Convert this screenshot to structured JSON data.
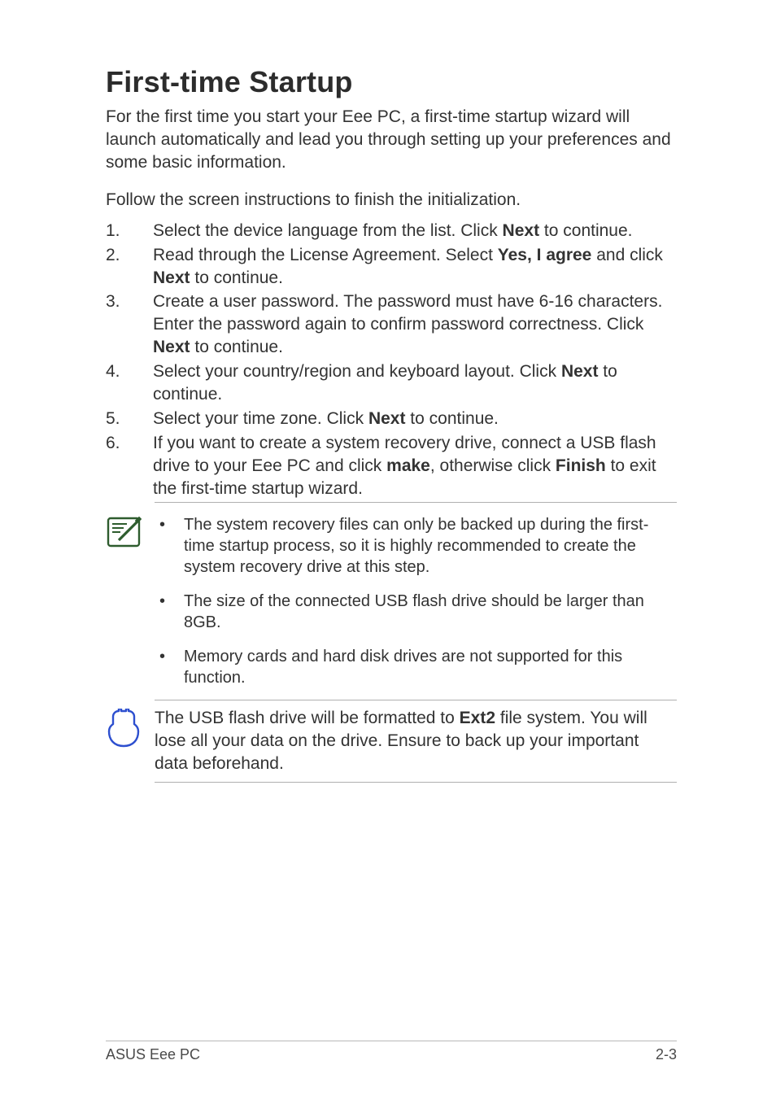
{
  "title": "First-time Startup",
  "intro": "For the first time you start your Eee PC, a first-time startup wizard will launch automatically and lead you through setting up your preferences and some basic information.",
  "lead": "Follow the screen instructions to finish the initialization.",
  "steps": [
    {
      "num": "1.",
      "segs": [
        {
          "t": "Select the device language from the list. Click "
        },
        {
          "t": "Next",
          "b": true
        },
        {
          "t": " to continue."
        }
      ]
    },
    {
      "num": "2.",
      "segs": [
        {
          "t": "Read through the License Agreement. Select "
        },
        {
          "t": "Yes, I agree",
          "b": true
        },
        {
          "t": " and click "
        },
        {
          "t": "Next",
          "b": true
        },
        {
          "t": " to continue."
        }
      ]
    },
    {
      "num": "3.",
      "segs": [
        {
          "t": "Create a user password. The password must have 6-16 characters. Enter the password again to confirm password correctness. Click "
        },
        {
          "t": "Next",
          "b": true
        },
        {
          "t": " to continue."
        }
      ]
    },
    {
      "num": "4.",
      "segs": [
        {
          "t": "Select your country/region and keyboard layout. Click "
        },
        {
          "t": "Next",
          "b": true
        },
        {
          "t": " to continue."
        }
      ]
    },
    {
      "num": "5.",
      "segs": [
        {
          "t": "Select your time zone. Click "
        },
        {
          "t": "Next",
          "b": true
        },
        {
          "t": " to continue."
        }
      ]
    },
    {
      "num": "6.",
      "segs": [
        {
          "t": "If you want to create a system recovery drive, connect a USB flash drive to your Eee PC and click "
        },
        {
          "t": "make",
          "b": true
        },
        {
          "t": ", otherwise click "
        },
        {
          "t": "Finish",
          "b": true
        },
        {
          "t": " to exit the first-time startup wizard."
        }
      ]
    }
  ],
  "note_bullets": [
    "The system recovery files can only be backed up during the first-time startup process, so it is highly recommended to create the system recovery drive at this step.",
    "The size of the connected USB flash drive should be larger than 8GB.",
    "Memory cards and hard disk drives are not supported for this function."
  ],
  "warn_segs": [
    {
      "t": "The USB flash drive will be formatted to "
    },
    {
      "t": "Ext2",
      "b": true
    },
    {
      "t": " file system. You will lose all your data on the drive. Ensure to back up your important data beforehand."
    }
  ],
  "footer_left": "ASUS Eee PC",
  "footer_right": "2-3",
  "bullet_char": "•",
  "colors": {
    "text": "#333333",
    "rule": "#b0b0b0",
    "note_icon": "#2e5c2e",
    "warn_icon": "#2d4fcf"
  },
  "fontsizes": {
    "title": 36,
    "body": 21,
    "bullets": 20,
    "footer": 18
  }
}
